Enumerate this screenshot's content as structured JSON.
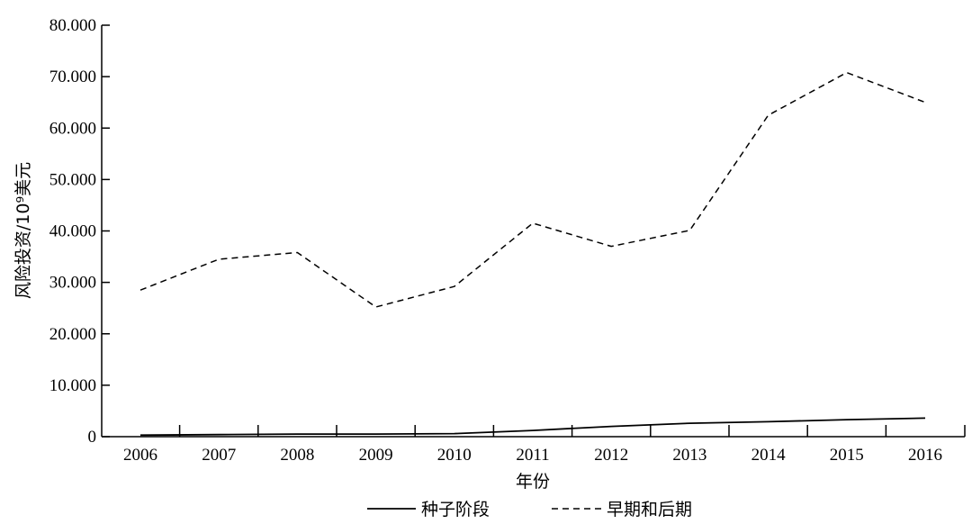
{
  "chart_data": {
    "type": "line",
    "title": "",
    "xlabel": "年份",
    "ylabel": "风险投资/10⁹美元",
    "ylim": [
      0,
      80
    ],
    "y_ticks": [
      0,
      10,
      20,
      30,
      40,
      50,
      60,
      70,
      80
    ],
    "y_tick_labels": [
      "0",
      "10.000",
      "20.000",
      "30.000",
      "40.000",
      "50.000",
      "60.000",
      "70.000",
      "80.000"
    ],
    "categories": [
      "2006",
      "2007",
      "2008",
      "2009",
      "2010",
      "2011",
      "2012",
      "2013",
      "2014",
      "2015",
      "2016"
    ],
    "grid": false,
    "legend_position": "bottom",
    "series": [
      {
        "name": "种子阶段",
        "style": "solid",
        "color": "#000000",
        "values": [
          0.3,
          0.4,
          0.5,
          0.5,
          0.6,
          1.2,
          2.0,
          2.6,
          2.9,
          3.3,
          3.6
        ]
      },
      {
        "name": "早期和后期",
        "style": "dashed",
        "color": "#000000",
        "values": [
          28.5,
          34.5,
          35.8,
          25.2,
          29.2,
          41.5,
          37.0,
          40.1,
          62.5,
          70.8,
          65.0
        ]
      }
    ]
  }
}
